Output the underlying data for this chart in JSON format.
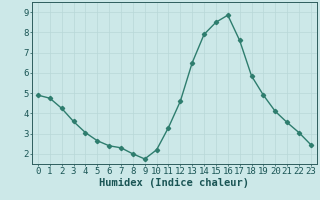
{
  "x": [
    0,
    1,
    2,
    3,
    4,
    5,
    6,
    7,
    8,
    9,
    10,
    11,
    12,
    13,
    14,
    15,
    16,
    17,
    18,
    19,
    20,
    21,
    22,
    23
  ],
  "y": [
    4.9,
    4.75,
    4.25,
    3.6,
    3.05,
    2.65,
    2.4,
    2.3,
    2.0,
    1.75,
    2.2,
    3.3,
    4.6,
    6.5,
    7.9,
    8.5,
    8.85,
    7.6,
    5.85,
    4.9,
    4.1,
    3.55,
    3.05,
    2.45
  ],
  "line_color": "#2e7d6e",
  "marker": "D",
  "markersize": 2.2,
  "linewidth": 1.0,
  "bg_color": "#cce8e8",
  "grid_color": "#b8d8d8",
  "xlabel": "Humidex (Indice chaleur)",
  "ylabel": "",
  "xlim": [
    -0.5,
    23.5
  ],
  "ylim": [
    1.5,
    9.5
  ],
  "yticks": [
    2,
    3,
    4,
    5,
    6,
    7,
    8,
    9
  ],
  "xticks": [
    0,
    1,
    2,
    3,
    4,
    5,
    6,
    7,
    8,
    9,
    10,
    11,
    12,
    13,
    14,
    15,
    16,
    17,
    18,
    19,
    20,
    21,
    22,
    23
  ],
  "tick_color": "#1a5555",
  "xlabel_fontsize": 7.5,
  "tick_fontsize": 6.5,
  "spine_color": "#2e5d5d"
}
